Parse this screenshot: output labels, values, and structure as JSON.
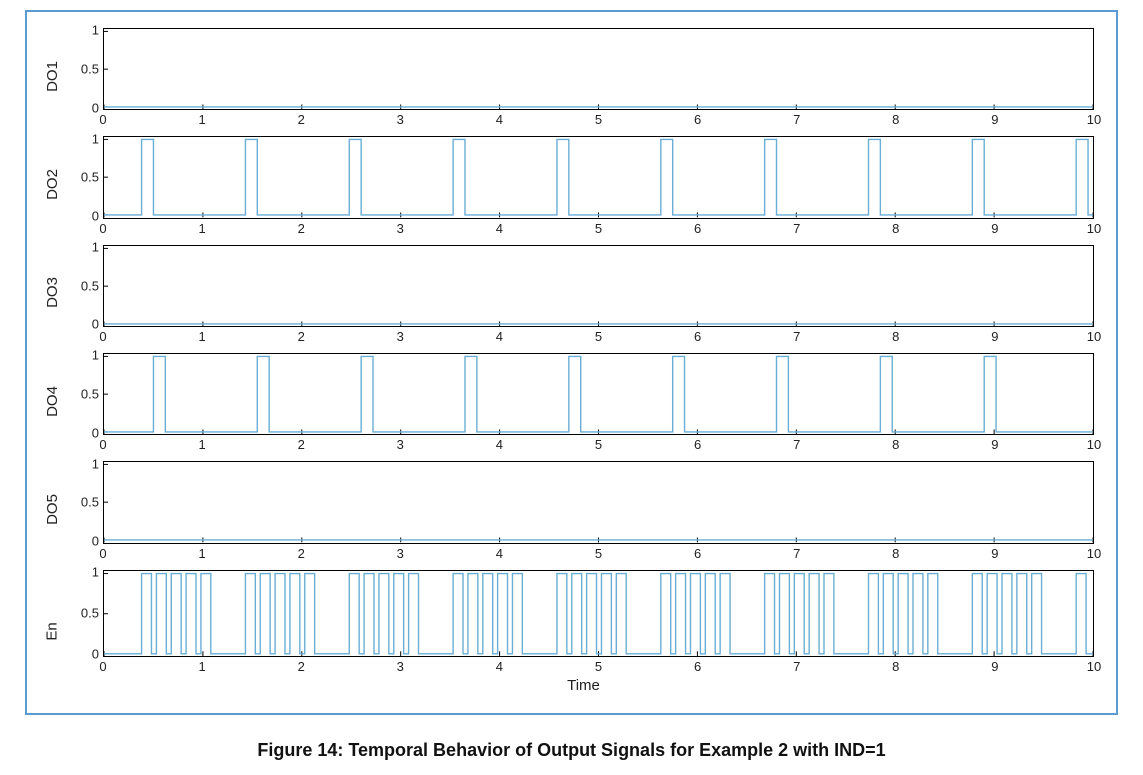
{
  "figure": {
    "caption": "Figure 14: Temporal Behavior of Output Signals for Example 2 with IND=1",
    "xaxis_label": "Time",
    "frame_border_color": "#5b9bd5",
    "signal_line_color": "#6aaed6",
    "axes_line_color": "#000000",
    "background_color": "#ffffff",
    "yticks": [
      0,
      0.5,
      1
    ],
    "xlim": [
      0,
      10
    ],
    "xticks": [
      0,
      1,
      2,
      3,
      4,
      5,
      6,
      7,
      8,
      9,
      10
    ],
    "signal_stroke_width": 1.4,
    "label_fontsize": 15,
    "tick_fontsize": 13,
    "subplots": [
      {
        "ylabel": "DO1",
        "pulses": []
      },
      {
        "ylabel": "DO2",
        "pulses": [
          {
            "start": 0.38,
            "end": 0.5
          },
          {
            "start": 1.43,
            "end": 1.55
          },
          {
            "start": 2.48,
            "end": 2.6
          },
          {
            "start": 3.53,
            "end": 3.65
          },
          {
            "start": 4.58,
            "end": 4.7
          },
          {
            "start": 5.63,
            "end": 5.75
          },
          {
            "start": 6.68,
            "end": 6.8
          },
          {
            "start": 7.73,
            "end": 7.85
          },
          {
            "start": 8.78,
            "end": 8.9
          },
          {
            "start": 9.83,
            "end": 9.95
          }
        ]
      },
      {
        "ylabel": "DO3",
        "pulses": []
      },
      {
        "ylabel": "DO4",
        "pulses": [
          {
            "start": 0.5,
            "end": 0.62
          },
          {
            "start": 1.55,
            "end": 1.67
          },
          {
            "start": 2.6,
            "end": 2.72
          },
          {
            "start": 3.65,
            "end": 3.77
          },
          {
            "start": 4.7,
            "end": 4.82
          },
          {
            "start": 5.75,
            "end": 5.87
          },
          {
            "start": 6.8,
            "end": 6.92
          },
          {
            "start": 7.85,
            "end": 7.97
          },
          {
            "start": 8.9,
            "end": 9.02
          }
        ]
      },
      {
        "ylabel": "DO5",
        "pulses": []
      },
      {
        "ylabel": "En",
        "pulses": [
          {
            "start": 0.38,
            "end": 0.48
          },
          {
            "start": 0.53,
            "end": 0.63
          },
          {
            "start": 0.68,
            "end": 0.78
          },
          {
            "start": 0.83,
            "end": 0.93
          },
          {
            "start": 0.98,
            "end": 1.08
          },
          {
            "start": 1.43,
            "end": 1.53
          },
          {
            "start": 1.58,
            "end": 1.68
          },
          {
            "start": 1.73,
            "end": 1.83
          },
          {
            "start": 1.88,
            "end": 1.98
          },
          {
            "start": 2.03,
            "end": 2.13
          },
          {
            "start": 2.48,
            "end": 2.58
          },
          {
            "start": 2.63,
            "end": 2.73
          },
          {
            "start": 2.78,
            "end": 2.88
          },
          {
            "start": 2.93,
            "end": 3.03
          },
          {
            "start": 3.08,
            "end": 3.18
          },
          {
            "start": 3.53,
            "end": 3.63
          },
          {
            "start": 3.68,
            "end": 3.78
          },
          {
            "start": 3.83,
            "end": 3.93
          },
          {
            "start": 3.98,
            "end": 4.08
          },
          {
            "start": 4.13,
            "end": 4.23
          },
          {
            "start": 4.58,
            "end": 4.68
          },
          {
            "start": 4.73,
            "end": 4.83
          },
          {
            "start": 4.88,
            "end": 4.98
          },
          {
            "start": 5.03,
            "end": 5.13
          },
          {
            "start": 5.18,
            "end": 5.28
          },
          {
            "start": 5.63,
            "end": 5.73
          },
          {
            "start": 5.78,
            "end": 5.88
          },
          {
            "start": 5.93,
            "end": 6.03
          },
          {
            "start": 6.08,
            "end": 6.18
          },
          {
            "start": 6.23,
            "end": 6.33
          },
          {
            "start": 6.68,
            "end": 6.78
          },
          {
            "start": 6.83,
            "end": 6.93
          },
          {
            "start": 6.98,
            "end": 7.08
          },
          {
            "start": 7.13,
            "end": 7.23
          },
          {
            "start": 7.28,
            "end": 7.38
          },
          {
            "start": 7.73,
            "end": 7.83
          },
          {
            "start": 7.88,
            "end": 7.98
          },
          {
            "start": 8.03,
            "end": 8.13
          },
          {
            "start": 8.18,
            "end": 8.28
          },
          {
            "start": 8.33,
            "end": 8.43
          },
          {
            "start": 8.78,
            "end": 8.88
          },
          {
            "start": 8.93,
            "end": 9.03
          },
          {
            "start": 9.08,
            "end": 9.18
          },
          {
            "start": 9.23,
            "end": 9.33
          },
          {
            "start": 9.38,
            "end": 9.48
          },
          {
            "start": 9.83,
            "end": 9.93
          }
        ]
      }
    ]
  }
}
